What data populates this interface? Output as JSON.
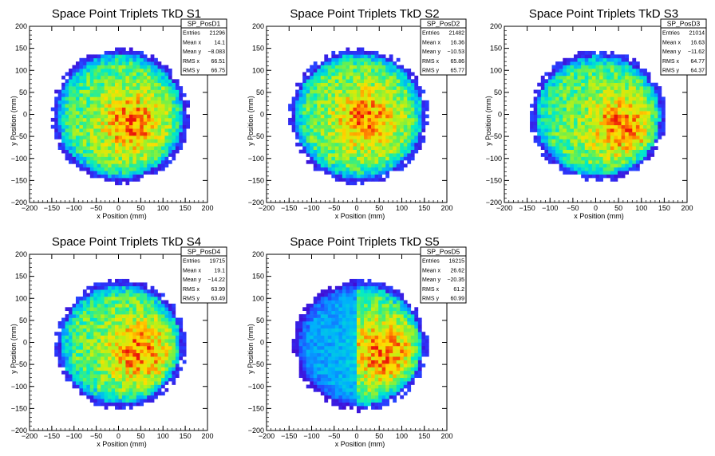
{
  "chart_data": [
    {
      "type": "heatmap",
      "title": "Space Point Triplets TkD S1",
      "xlabel": "x Position (mm)",
      "ylabel": "y Position (mm)",
      "xlim": [
        -200,
        200
      ],
      "ylim": [
        -200,
        200
      ],
      "xticks": [
        "−200",
        "−150",
        "−100",
        "−50",
        "0",
        "50",
        "100",
        "150",
        "200"
      ],
      "yticks": [
        "200",
        "150",
        "100",
        "50",
        "0",
        "−50",
        "−100",
        "−150",
        "−200"
      ],
      "stats": {
        "name": "SP_PosD1",
        "rows": [
          {
            "label": "Entries",
            "value": "21296"
          },
          {
            "label": "Mean x",
            "value": "14.1"
          },
          {
            "label": "Mean y",
            "value": "−8.083"
          },
          {
            "label": "RMS x",
            "value": "66.51"
          },
          {
            "label": "RMS y",
            "value": "66.75"
          }
        ]
      },
      "distribution": {
        "center_x": 14.1,
        "center_y": -8.083,
        "radius": 155,
        "hotspot": [
          30,
          -20
        ]
      }
    },
    {
      "type": "heatmap",
      "title": "Space Point Triplets TkD S2",
      "xlabel": "x Position (mm)",
      "ylabel": "y Position (mm)",
      "xlim": [
        -200,
        200
      ],
      "ylim": [
        -200,
        200
      ],
      "xticks": [
        "−200",
        "−150",
        "−100",
        "−50",
        "0",
        "50",
        "100",
        "150",
        "200"
      ],
      "yticks": [
        "200",
        "150",
        "100",
        "50",
        "0",
        "−50",
        "−100",
        "−150",
        "−200"
      ],
      "stats": {
        "name": "SP_PosD2",
        "rows": [
          {
            "label": "Entries",
            "value": "21482"
          },
          {
            "label": "Mean x",
            "value": "16.36"
          },
          {
            "label": "Mean y",
            "value": "−10.53"
          },
          {
            "label": "RMS x",
            "value": "65.86"
          },
          {
            "label": "RMS y",
            "value": "65.77"
          }
        ]
      },
      "distribution": {
        "center_x": 16.36,
        "center_y": -10.53,
        "radius": 155,
        "hotspot": [
          20,
          -10
        ]
      }
    },
    {
      "type": "heatmap",
      "title": "Space Point Triplets TkD S3",
      "xlabel": "x Position (mm)",
      "ylabel": "y Position (mm)",
      "xlim": [
        -200,
        200
      ],
      "ylim": [
        -200,
        200
      ],
      "xticks": [
        "−200",
        "−150",
        "−100",
        "−50",
        "0",
        "50",
        "100",
        "150",
        "200"
      ],
      "yticks": [
        "200",
        "150",
        "100",
        "50",
        "0",
        "−50",
        "−100",
        "−150",
        "−200"
      ],
      "stats": {
        "name": "SP_PosD3",
        "rows": [
          {
            "label": "Entries",
            "value": "21014"
          },
          {
            "label": "Mean x",
            "value": "16.63"
          },
          {
            "label": "Mean y",
            "value": "−11.62"
          },
          {
            "label": "RMS x",
            "value": "64.77"
          },
          {
            "label": "RMS y",
            "value": "64.37"
          }
        ]
      },
      "distribution": {
        "center_x": 16.63,
        "center_y": -11.62,
        "radius": 150,
        "hotspot": [
          55,
          -25
        ]
      }
    },
    {
      "type": "heatmap",
      "title": "Space Point Triplets TkD S4",
      "xlabel": "x Position (mm)",
      "ylabel": "y Position (mm)",
      "xlim": [
        -200,
        200
      ],
      "ylim": [
        -200,
        200
      ],
      "xticks": [
        "−200",
        "−150",
        "−100",
        "−50",
        "0",
        "50",
        "100",
        "150",
        "200"
      ],
      "yticks": [
        "200",
        "150",
        "100",
        "50",
        "0",
        "−50",
        "−100",
        "−150",
        "−200"
      ],
      "stats": {
        "name": "SP_PosD4",
        "rows": [
          {
            "label": "Entries",
            "value": "19715"
          },
          {
            "label": "Mean x",
            "value": "19.1"
          },
          {
            "label": "Mean y",
            "value": "−14.22"
          },
          {
            "label": "RMS x",
            "value": "63.99"
          },
          {
            "label": "RMS y",
            "value": "63.49"
          }
        ]
      },
      "distribution": {
        "center_x": 19.1,
        "center_y": -14.22,
        "radius": 148,
        "hotspot": [
          45,
          -20
        ]
      }
    },
    {
      "type": "heatmap",
      "title": "Space Point Triplets TkD S5",
      "xlabel": "x Position (mm)",
      "ylabel": "y Position (mm)",
      "xlim": [
        -200,
        200
      ],
      "ylim": [
        -200,
        200
      ],
      "xticks": [
        "−200",
        "−150",
        "−100",
        "−50",
        "0",
        "50",
        "100",
        "150",
        "200"
      ],
      "yticks": [
        "200",
        "150",
        "100",
        "50",
        "0",
        "−50",
        "−100",
        "−150",
        "−200"
      ],
      "stats": {
        "name": "SP_PosD5",
        "rows": [
          {
            "label": "Entries",
            "value": "16215"
          },
          {
            "label": "Mean x",
            "value": "26.62"
          },
          {
            "label": "Mean y",
            "value": "−20.35"
          },
          {
            "label": "RMS x",
            "value": "61.2"
          },
          {
            "label": "RMS y",
            "value": "60.99"
          }
        ]
      },
      "distribution": {
        "center_x": 26.62,
        "center_y": -20.35,
        "radius": 150,
        "hotspot": [
          55,
          -20
        ]
      }
    }
  ]
}
